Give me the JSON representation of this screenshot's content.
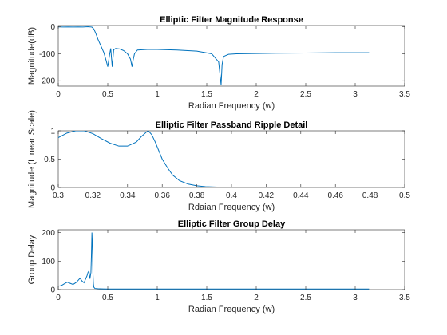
{
  "chart_data": [
    {
      "type": "line",
      "title": "Elliptic Filter Magnitude Response",
      "xlabel": "Radian Frequency (w)",
      "ylabel": "Magnitude(dB)",
      "xlim": [
        0,
        3.5
      ],
      "ylim": [
        -220,
        5
      ],
      "xticks": [
        0,
        0.5,
        1,
        1.5,
        2,
        2.5,
        3,
        3.5
      ],
      "xtick_labels": [
        "0",
        "0.5",
        "1",
        "1.5",
        "2",
        "2.5",
        "3",
        "3.5"
      ],
      "yticks": [
        0,
        -100,
        -200
      ],
      "ytick_labels": [
        "0",
        "-100",
        "-200"
      ],
      "grid": false,
      "series": [
        {
          "color": "#0072BD",
          "x": [
            0,
            0.05,
            0.1,
            0.15,
            0.2,
            0.25,
            0.3,
            0.32,
            0.34,
            0.36,
            0.38,
            0.4,
            0.43,
            0.46,
            0.48,
            0.5,
            0.52,
            0.53,
            0.545,
            0.56,
            0.58,
            0.62,
            0.66,
            0.7,
            0.73,
            0.745,
            0.755,
            0.77,
            0.8,
            0.9,
            1.0,
            1.2,
            1.4,
            1.55,
            1.62,
            1.645,
            1.655,
            1.67,
            1.72,
            1.8,
            2.0,
            2.2,
            2.5,
            2.8,
            3.14
          ],
          "y": [
            0,
            -0.5,
            0,
            -0.6,
            0,
            -0.4,
            0.5,
            0,
            -1,
            -8,
            -25,
            -45,
            -70,
            -95,
            -120,
            -148,
            -100,
            -80,
            -148,
            -85,
            -80,
            -82,
            -88,
            -100,
            -120,
            -148,
            -125,
            -100,
            -86,
            -84,
            -84,
            -86,
            -90,
            -100,
            -130,
            -215,
            -140,
            -110,
            -102,
            -100,
            -99,
            -98,
            -97,
            -96,
            -96
          ]
        }
      ]
    },
    {
      "type": "line",
      "title": "Elliptic Filter Passband Ripple Detail",
      "xlabel": "Rdaian Frequency (w)",
      "ylabel": "Magnitude (Linear Scale)",
      "xlim": [
        0.3,
        0.5
      ],
      "ylim": [
        0,
        1
      ],
      "xticks": [
        0.3,
        0.32,
        0.34,
        0.36,
        0.38,
        0.4,
        0.42,
        0.44,
        0.46,
        0.48,
        0.5
      ],
      "xtick_labels": [
        "0.3",
        "0.32",
        "0.34",
        "0.36",
        "0.38",
        "0.4",
        "0.42",
        "0.44",
        "0.46",
        "0.48",
        "0.5"
      ],
      "yticks": [
        0,
        0.5,
        1
      ],
      "ytick_labels": [
        "0",
        "0.5",
        "1"
      ],
      "grid": false,
      "series": [
        {
          "color": "#0072BD",
          "x": [
            0.3,
            0.305,
            0.31,
            0.315,
            0.32,
            0.325,
            0.33,
            0.335,
            0.34,
            0.345,
            0.348,
            0.351,
            0.352,
            0.354,
            0.356,
            0.358,
            0.36,
            0.363,
            0.366,
            0.37,
            0.375,
            0.38,
            0.385,
            0.39,
            0.395,
            0.4,
            0.42,
            0.45,
            0.5
          ],
          "y": [
            0.88,
            0.96,
            1.0,
            1.0,
            0.95,
            0.86,
            0.78,
            0.73,
            0.73,
            0.8,
            0.9,
            0.98,
            1.0,
            0.93,
            0.8,
            0.65,
            0.5,
            0.35,
            0.22,
            0.12,
            0.06,
            0.03,
            0.015,
            0.008,
            0.004,
            0.002,
            0.0005,
            0.0,
            0.0
          ]
        }
      ]
    },
    {
      "type": "line",
      "title": "Elliptic Filter Group Delay",
      "xlabel": "Radian Frequency (w)",
      "ylabel": "Group Delay",
      "xlim": [
        0,
        3.5
      ],
      "ylim": [
        0,
        210
      ],
      "xticks": [
        0,
        0.5,
        1,
        1.5,
        2,
        2.5,
        3,
        3.5
      ],
      "xtick_labels": [
        "0",
        "0.5",
        "1",
        "1.5",
        "2",
        "2.5",
        "3",
        "3.5"
      ],
      "yticks": [
        0,
        100,
        200
      ],
      "ytick_labels": [
        "0",
        "100",
        "200"
      ],
      "grid": false,
      "series": [
        {
          "color": "#0072BD",
          "x": [
            0,
            0.03,
            0.06,
            0.09,
            0.12,
            0.15,
            0.18,
            0.2,
            0.22,
            0.24,
            0.26,
            0.28,
            0.29,
            0.3,
            0.31,
            0.315,
            0.32,
            0.33,
            0.335,
            0.34,
            0.345,
            0.35,
            0.355,
            0.36,
            0.37,
            0.4,
            0.45,
            0.5,
            0.6,
            0.8,
            1.0,
            1.5,
            2.0,
            2.5,
            3.0,
            3.14
          ],
          "y": [
            12,
            14,
            20,
            26,
            22,
            18,
            25,
            32,
            40,
            30,
            24,
            40,
            48,
            60,
            65,
            50,
            38,
            60,
            120,
            200,
            150,
            60,
            20,
            8,
            4,
            3,
            2.5,
            2,
            2,
            2,
            2,
            2,
            2,
            2,
            2,
            2
          ]
        }
      ]
    }
  ]
}
